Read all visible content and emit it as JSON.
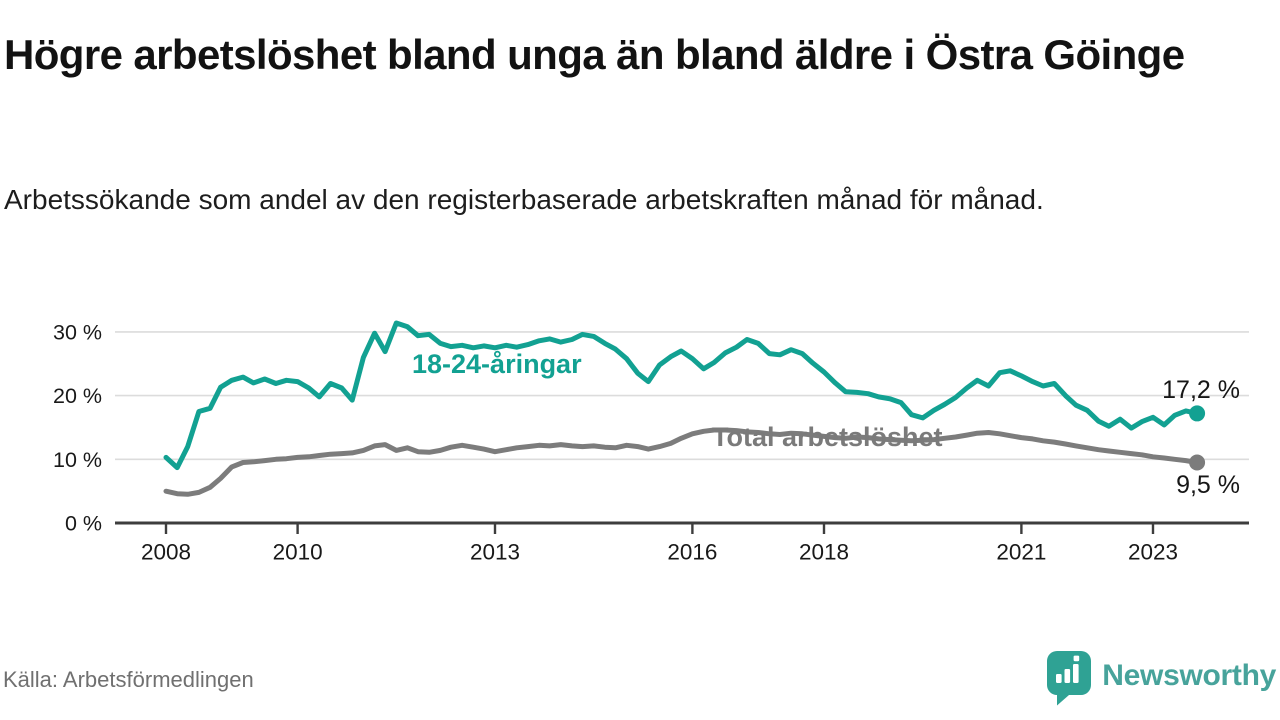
{
  "header": {
    "title": "Högre arbetslöshet bland unga än bland äldre i Östra Göinge",
    "subtitle": "Arbetssökande som andel av den registerbaserade arbetskraften månad för månad."
  },
  "footer": {
    "source": "Källa: Arbetsförmedlingen",
    "logo_text": "Newsworthy",
    "logo_icon": "newsworthy-speech-bubble-bar-chart-icon"
  },
  "colors": {
    "youth_line": "#12a192",
    "total_line": "#7c7c7c",
    "total_label": "#7a7a7a",
    "grid": "#dcdcdc",
    "axis": "#3d3d3d",
    "tick_text": "#191919",
    "end_label_text": "#161616",
    "title_text": "#121212",
    "source_text": "#707070",
    "logo_teal": "#2fa294",
    "logo_wordmark": "#47a39b"
  },
  "chart_data": {
    "type": "line",
    "title": "",
    "xlabel": "",
    "ylabel": "",
    "grid": "horizontal",
    "legend_position": "inline-labels",
    "xlim": [
      2007.25,
      2024.5
    ],
    "ylim": [
      0,
      33
    ],
    "x_ticks": [
      2008,
      2010,
      2013,
      2016,
      2018,
      2021,
      2023
    ],
    "x_tick_labels": [
      "2008",
      "2010",
      "2013",
      "2016",
      "2018",
      "2021",
      "2023"
    ],
    "y_ticks": [
      0,
      10,
      20,
      30
    ],
    "y_tick_labels": [
      "0 %",
      "10 %",
      "20 %",
      "30 %"
    ],
    "x": [
      2008,
      2008.17,
      2008.33,
      2008.5,
      2008.67,
      2008.83,
      2009,
      2009.17,
      2009.33,
      2009.5,
      2009.67,
      2009.83,
      2010,
      2010.17,
      2010.33,
      2010.5,
      2010.67,
      2010.83,
      2011,
      2011.17,
      2011.33,
      2011.5,
      2011.67,
      2011.83,
      2012,
      2012.17,
      2012.33,
      2012.5,
      2012.67,
      2012.83,
      2013,
      2013.17,
      2013.33,
      2013.5,
      2013.67,
      2013.83,
      2014,
      2014.17,
      2014.33,
      2014.5,
      2014.67,
      2014.83,
      2015,
      2015.17,
      2015.33,
      2015.5,
      2015.67,
      2015.83,
      2016,
      2016.17,
      2016.33,
      2016.5,
      2016.67,
      2016.83,
      2017,
      2017.17,
      2017.33,
      2017.5,
      2017.67,
      2017.83,
      2018,
      2018.17,
      2018.33,
      2018.5,
      2018.67,
      2018.83,
      2019,
      2019.17,
      2019.33,
      2019.5,
      2019.67,
      2019.83,
      2020,
      2020.17,
      2020.33,
      2020.5,
      2020.67,
      2020.83,
      2021,
      2021.17,
      2021.33,
      2021.5,
      2021.67,
      2021.83,
      2022,
      2022.17,
      2022.33,
      2022.5,
      2022.67,
      2022.83,
      2023,
      2023.17,
      2023.33,
      2023.5,
      2023.67
    ],
    "series": [
      {
        "name": "18-24-åringar",
        "color": "#12a192",
        "end_label": "17,2 %",
        "end_value": 17.2,
        "values": [
          10.3,
          8.7,
          12.0,
          17.5,
          18.0,
          21.3,
          22.4,
          22.9,
          22.0,
          22.6,
          21.9,
          22.4,
          22.2,
          21.2,
          19.8,
          21.9,
          21.2,
          19.3,
          26.0,
          29.8,
          26.9,
          31.4,
          30.8,
          29.4,
          29.6,
          28.2,
          27.7,
          27.9,
          27.5,
          27.8,
          27.5,
          27.9,
          27.6,
          28.0,
          28.6,
          28.9,
          28.4,
          28.8,
          29.6,
          29.3,
          28.2,
          27.3,
          25.8,
          23.5,
          22.2,
          24.8,
          26.1,
          27.0,
          25.8,
          24.2,
          25.2,
          26.7,
          27.6,
          28.8,
          28.2,
          26.6,
          26.4,
          27.2,
          26.6,
          25.1,
          23.7,
          22.0,
          20.6,
          20.5,
          20.3,
          19.8,
          19.5,
          18.9,
          17.0,
          16.5,
          17.7,
          18.6,
          19.7,
          21.2,
          22.4,
          21.5,
          23.6,
          23.9,
          23.1,
          22.2,
          21.5,
          21.9,
          20.0,
          18.5,
          17.7,
          16.0,
          15.2,
          16.3,
          14.9,
          15.9,
          16.6,
          15.4,
          16.9,
          17.6,
          17.2
        ]
      },
      {
        "name": "Total arbetslöshet",
        "color": "#7c7c7c",
        "end_label": "9,5 %",
        "end_value": 9.5,
        "values": [
          5.0,
          4.6,
          4.5,
          4.8,
          5.6,
          7.0,
          8.8,
          9.5,
          9.6,
          9.8,
          10.0,
          10.1,
          10.3,
          10.4,
          10.6,
          10.8,
          10.9,
          11.0,
          11.4,
          12.1,
          12.3,
          11.4,
          11.8,
          11.2,
          11.1,
          11.4,
          11.9,
          12.2,
          11.9,
          11.6,
          11.2,
          11.5,
          11.8,
          12.0,
          12.2,
          12.1,
          12.3,
          12.1,
          12.0,
          12.1,
          11.9,
          11.8,
          12.2,
          12.0,
          11.6,
          12.0,
          12.5,
          13.3,
          14.0,
          14.4,
          14.6,
          14.6,
          14.5,
          14.3,
          14.2,
          14.0,
          13.9,
          14.1,
          14.0,
          13.8,
          13.6,
          13.4,
          13.3,
          13.5,
          13.4,
          13.2,
          13.1,
          13.0,
          12.9,
          13.0,
          13.1,
          13.3,
          13.5,
          13.8,
          14.1,
          14.2,
          14.0,
          13.7,
          13.4,
          13.2,
          12.9,
          12.7,
          12.4,
          12.1,
          11.8,
          11.5,
          11.3,
          11.1,
          10.9,
          10.7,
          10.4,
          10.2,
          10.0,
          9.8,
          9.5
        ]
      }
    ]
  }
}
